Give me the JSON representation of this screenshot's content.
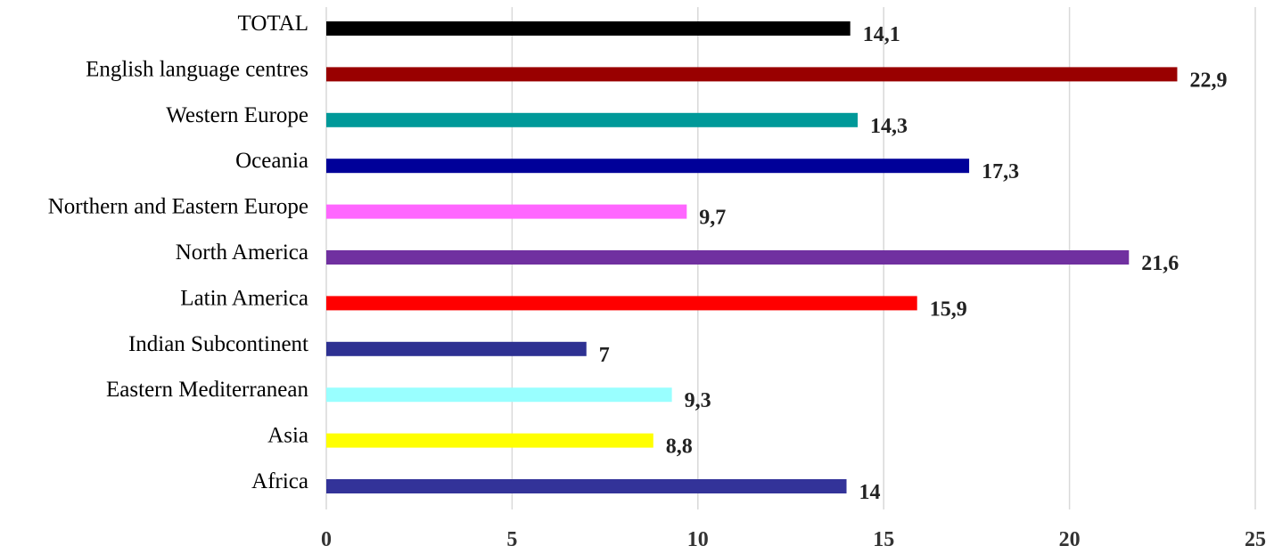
{
  "chart_data": {
    "type": "bar",
    "orientation": "horizontal",
    "title": "",
    "xlabel": "",
    "ylabel": "",
    "categories": [
      "TOTAL",
      "English language centres",
      "Western Europe",
      "Oceania",
      "Northern and Eastern Europe",
      "North America",
      "Latin America",
      "Indian Subcontinent",
      "Eastern Mediterranean",
      "Asia",
      "Africa"
    ],
    "values": [
      14.1,
      22.9,
      14.3,
      17.3,
      9.7,
      21.6,
      15.9,
      7,
      9.3,
      8.8,
      14
    ],
    "value_labels": [
      "14,1",
      "22,9",
      "14,3",
      "17,3",
      "9,7",
      "21,6",
      "15,9",
      "7",
      "9,3",
      "8,8",
      "14"
    ],
    "colors": [
      "#000000",
      "#990000",
      "#009999",
      "#000099",
      "#ff66ff",
      "#7030a0",
      "#ff0000",
      "#2e3192",
      "#99ffff",
      "#ffff00",
      "#333399"
    ],
    "xlim": [
      0,
      25
    ],
    "xticks": [
      0,
      5,
      10,
      15,
      20,
      25
    ],
    "xtick_labels": [
      "0",
      "5",
      "10",
      "15",
      "20",
      "25"
    ],
    "grid": true,
    "legend": "none"
  }
}
